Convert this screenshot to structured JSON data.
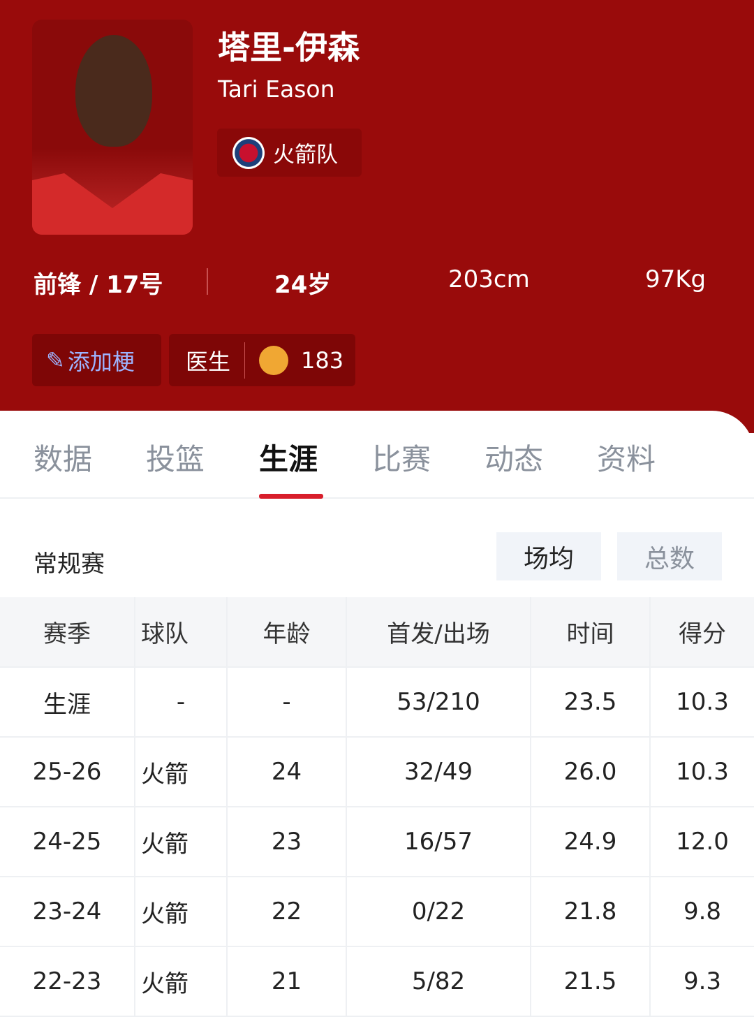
{
  "player": {
    "name_cn": "塔里-伊森",
    "name_en": "Tari Eason",
    "team": "火箭队",
    "position": "前锋 / 17号",
    "age": "24岁",
    "height": "203cm",
    "weight": "97Kg"
  },
  "buttons": {
    "add_meme": "添加梗",
    "nickname": "医生",
    "like_count": "183"
  },
  "tabs": [
    "数据",
    "投篮",
    "生涯",
    "比赛",
    "动态",
    "资料"
  ],
  "active_tab": "生涯",
  "section": {
    "title": "常规赛",
    "toggle_avg": "场均",
    "toggle_total": "总数"
  },
  "table": {
    "headers": [
      "赛季",
      "球队",
      "年龄",
      "首发/出场",
      "时间",
      "得分"
    ],
    "rows": [
      [
        "生涯",
        "-",
        "-",
        "53/210",
        "23.5",
        "10.3"
      ],
      [
        "25-26",
        "火箭",
        "24",
        "32/49",
        "26.0",
        "10.3"
      ],
      [
        "24-25",
        "火箭",
        "23",
        "16/57",
        "24.9",
        "12.0"
      ],
      [
        "23-24",
        "火箭",
        "22",
        "0/22",
        "21.8",
        "9.8"
      ],
      [
        "22-23",
        "火箭",
        "21",
        "5/82",
        "21.5",
        "9.3"
      ]
    ]
  },
  "colors": {
    "header_bg": "#990b0b",
    "accent": "#d81e2b"
  }
}
